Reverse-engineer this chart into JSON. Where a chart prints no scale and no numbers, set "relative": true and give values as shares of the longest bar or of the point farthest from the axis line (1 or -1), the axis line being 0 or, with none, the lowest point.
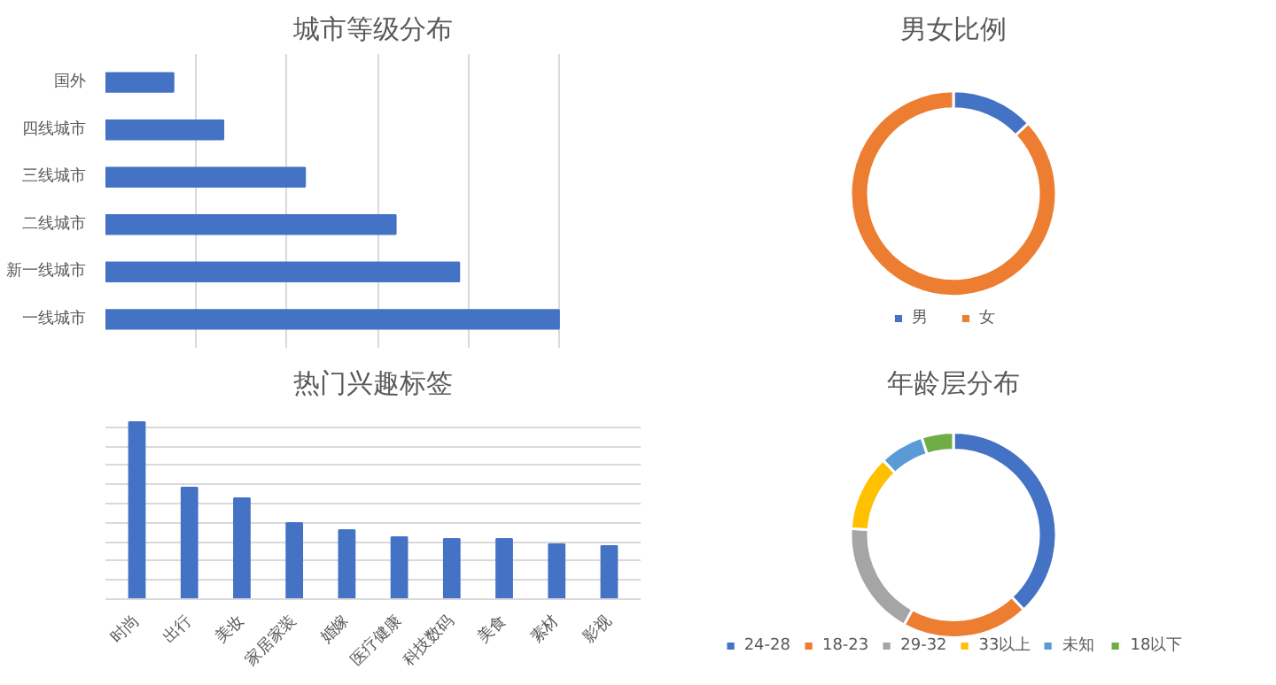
{
  "chart_data": [
    {
      "type": "bar",
      "title": "城市等级分布",
      "orientation": "horizontal",
      "relative": true,
      "grid": "x",
      "categories": [
        "国外",
        "四线城市",
        "三线城市",
        "二线城市",
        "新一线城市",
        "一线城市"
      ],
      "values": [
        0.15,
        0.26,
        0.44,
        0.64,
        0.78,
        1
      ],
      "color": "#4472c4"
    },
    {
      "type": "donut",
      "title": "男女比例",
      "categories": [
        "男",
        "女"
      ],
      "values": [
        13,
        87
      ],
      "colors": [
        "#4472c4",
        "#ed7d31"
      ],
      "legend": "bottom"
    },
    {
      "type": "bar",
      "title": "热门兴趣标签",
      "relative": true,
      "grid": "y",
      "categories": [
        "时尚",
        "出行",
        "美妆",
        "家居家装",
        "婚嫁",
        "医疗健康",
        "科技数码",
        "美食",
        "素材",
        "影视"
      ],
      "values": [
        1,
        0.63,
        0.57,
        0.43,
        0.39,
        0.35,
        0.34,
        0.34,
        0.31,
        0.3
      ],
      "color": "#4472c4"
    },
    {
      "type": "donut",
      "title": "年龄层分布",
      "categories": [
        "24-28",
        "18-23",
        "29-32",
        "33以上",
        "未知",
        "18以下"
      ],
      "values": [
        38,
        20,
        18,
        12,
        7,
        5
      ],
      "colors": [
        "#4472c4",
        "#ed7d31",
        "#a5a5a5",
        "#ffc000",
        "#5b9bd5",
        "#70ad47"
      ],
      "legend": "bottom"
    }
  ]
}
